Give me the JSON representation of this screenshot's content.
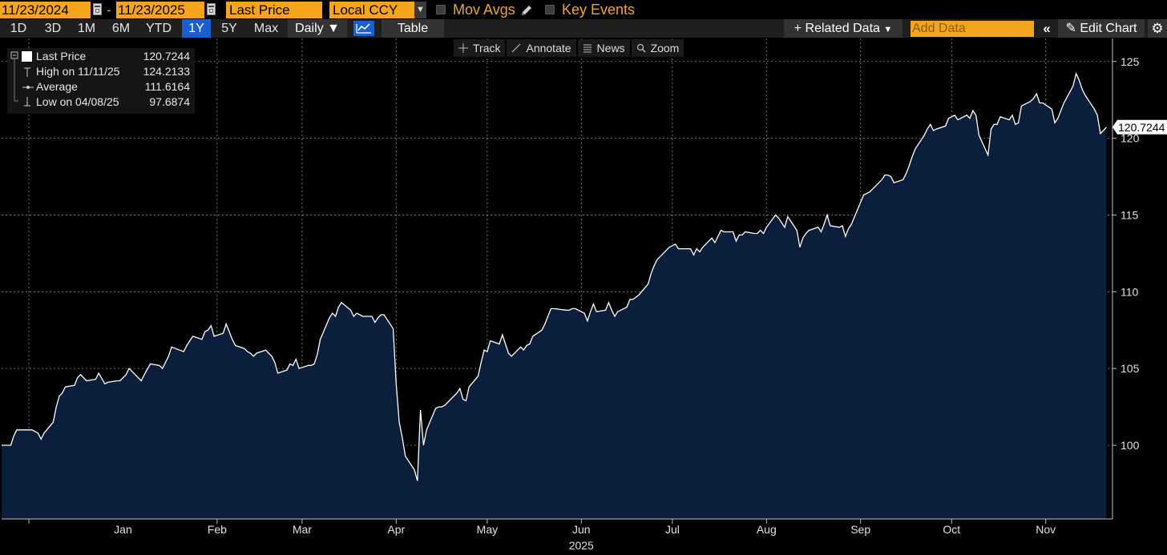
{
  "toolbar": {
    "start_date": "11/23/2024",
    "end_date": "11/23/2025",
    "separator": "-",
    "field": "Last Price",
    "currency": "Local CCY",
    "mov_avgs": "Mov Avgs",
    "key_events": "Key Events"
  },
  "periods": {
    "items": [
      "1D",
      "3D",
      "1M",
      "6M",
      "YTD",
      "1Y",
      "5Y",
      "Max"
    ],
    "active": "1Y",
    "frequency": "Daily",
    "table": "Table",
    "related_data": "Related Data",
    "add_data_placeholder": "Add Data",
    "edit_chart": "Edit Chart"
  },
  "tools": [
    "Track",
    "Annotate",
    "News",
    "Zoom"
  ],
  "legend": {
    "rows": [
      {
        "label": "Last Price",
        "value": "120.7244"
      },
      {
        "label": "High on 11/11/25",
        "value": "124.2133"
      },
      {
        "label": "Average",
        "value": "111.6164"
      },
      {
        "label": "Low on 04/08/25",
        "value": "97.6874"
      }
    ]
  },
  "colors": {
    "accent": "#f4a51c",
    "active_blue": "#1a5fd0",
    "area_fill": "#0b1f3d",
    "line": "#ffffff",
    "grid": "#8c8c8c"
  },
  "chart_data": {
    "type": "area",
    "xlabel": "2025",
    "ylabel": "",
    "ylim": [
      95.2,
      126.5
    ],
    "y_ticks": [
      100,
      105,
      110,
      115,
      120,
      125
    ],
    "x_ticks": [
      "Jan",
      "Feb",
      "Mar",
      "Apr",
      "May",
      "Jun",
      "Jul",
      "Aug",
      "Sep",
      "Oct",
      "Nov"
    ],
    "x_tick_dates": [
      "2025-01-01",
      "2025-02-01",
      "2025-03-01",
      "2025-04-01",
      "2025-05-01",
      "2025-06-01",
      "2025-07-01",
      "2025-08-01",
      "2025-09-01",
      "2025-10-01",
      "2025-11-01"
    ],
    "x_range": [
      "2024-11-22",
      "2025-11-23"
    ],
    "last_value_label": "120.7244",
    "grid": true,
    "legend_position": "top-left",
    "series": [
      {
        "name": "Last Price",
        "points": [
          [
            "2024-11-22",
            100.0
          ],
          [
            "2024-11-25",
            100.0
          ],
          [
            "2024-11-26",
            100.6
          ],
          [
            "2024-11-27",
            101.0
          ],
          [
            "2024-11-29",
            101.0
          ],
          [
            "2024-12-02",
            101.0
          ],
          [
            "2024-12-03",
            100.9
          ],
          [
            "2024-12-04",
            100.8
          ],
          [
            "2024-12-05",
            100.4
          ],
          [
            "2024-12-06",
            100.8
          ],
          [
            "2024-12-09",
            101.5
          ],
          [
            "2024-12-10",
            102.5
          ],
          [
            "2024-12-11",
            103.2
          ],
          [
            "2024-12-12",
            103.4
          ],
          [
            "2024-12-13",
            103.8
          ],
          [
            "2024-12-16",
            103.9
          ],
          [
            "2024-12-17",
            104.4
          ],
          [
            "2024-12-18",
            104.6
          ],
          [
            "2024-12-19",
            104.4
          ],
          [
            "2024-12-20",
            104.2
          ],
          [
            "2024-12-23",
            104.3
          ],
          [
            "2024-12-24",
            104.7
          ],
          [
            "2024-12-26",
            104.0
          ],
          [
            "2024-12-27",
            104.1
          ],
          [
            "2024-12-30",
            104.2
          ],
          [
            "2024-12-31",
            104.2
          ],
          [
            "2025-01-02",
            104.6
          ],
          [
            "2025-01-03",
            105.0
          ],
          [
            "2025-01-06",
            104.4
          ],
          [
            "2025-01-07",
            104.2
          ],
          [
            "2025-01-08",
            104.6
          ],
          [
            "2025-01-10",
            105.3
          ],
          [
            "2025-01-13",
            105.2
          ],
          [
            "2025-01-14",
            105.0
          ],
          [
            "2025-01-15",
            105.4
          ],
          [
            "2025-01-16",
            105.8
          ],
          [
            "2025-01-17",
            106.4
          ],
          [
            "2025-01-21",
            106.1
          ],
          [
            "2025-01-22",
            106.5
          ],
          [
            "2025-01-23",
            106.8
          ],
          [
            "2025-01-24",
            107.1
          ],
          [
            "2025-01-27",
            106.9
          ],
          [
            "2025-01-28",
            107.4
          ],
          [
            "2025-01-29",
            107.5
          ],
          [
            "2025-01-30",
            107.8
          ],
          [
            "2025-01-31",
            107.1
          ],
          [
            "2025-02-03",
            107.3
          ],
          [
            "2025-02-04",
            107.9
          ],
          [
            "2025-02-05",
            107.4
          ],
          [
            "2025-02-06",
            106.9
          ],
          [
            "2025-02-07",
            106.5
          ],
          [
            "2025-02-10",
            106.3
          ],
          [
            "2025-02-11",
            106.1
          ],
          [
            "2025-02-12",
            106.0
          ],
          [
            "2025-02-13",
            105.8
          ],
          [
            "2025-02-14",
            106.0
          ],
          [
            "2025-02-17",
            106.2
          ],
          [
            "2025-02-18",
            106.0
          ],
          [
            "2025-02-19",
            105.8
          ],
          [
            "2025-02-20",
            105.4
          ],
          [
            "2025-02-21",
            104.7
          ],
          [
            "2025-02-24",
            104.9
          ],
          [
            "2025-02-25",
            105.3
          ],
          [
            "2025-02-26",
            105.2
          ],
          [
            "2025-02-27",
            105.6
          ],
          [
            "2025-02-28",
            105.0
          ],
          [
            "2025-03-03",
            105.2
          ],
          [
            "2025-03-04",
            105.2
          ],
          [
            "2025-03-05",
            105.3
          ],
          [
            "2025-03-06",
            105.9
          ],
          [
            "2025-03-07",
            106.9
          ],
          [
            "2025-03-10",
            108.3
          ],
          [
            "2025-03-11",
            108.6
          ],
          [
            "2025-03-12",
            108.4
          ],
          [
            "2025-03-13",
            109.0
          ],
          [
            "2025-03-14",
            109.3
          ],
          [
            "2025-03-17",
            108.8
          ],
          [
            "2025-03-18",
            108.4
          ],
          [
            "2025-03-19",
            108.6
          ],
          [
            "2025-03-20",
            108.5
          ],
          [
            "2025-03-21",
            108.4
          ],
          [
            "2025-03-24",
            108.4
          ],
          [
            "2025-03-25",
            108.0
          ],
          [
            "2025-03-26",
            108.3
          ],
          [
            "2025-03-27",
            108.5
          ],
          [
            "2025-03-28",
            108.5
          ],
          [
            "2025-03-31",
            107.6
          ],
          [
            "2025-04-01",
            104.0
          ],
          [
            "2025-04-02",
            101.5
          ],
          [
            "2025-04-03",
            100.5
          ],
          [
            "2025-04-04",
            99.3
          ],
          [
            "2025-04-07",
            98.4
          ],
          [
            "2025-04-08",
            97.69
          ],
          [
            "2025-04-09",
            102.3
          ],
          [
            "2025-04-10",
            100.0
          ],
          [
            "2025-04-11",
            101.0
          ],
          [
            "2025-04-14",
            102.4
          ],
          [
            "2025-04-15",
            102.5
          ],
          [
            "2025-04-16",
            102.5
          ],
          [
            "2025-04-17",
            102.6
          ],
          [
            "2025-04-21",
            103.4
          ],
          [
            "2025-04-22",
            103.7
          ],
          [
            "2025-04-23",
            103.0
          ],
          [
            "2025-04-24",
            102.9
          ],
          [
            "2025-04-25",
            103.8
          ],
          [
            "2025-04-28",
            104.5
          ],
          [
            "2025-04-29",
            105.4
          ],
          [
            "2025-04-30",
            106.2
          ],
          [
            "2025-05-01",
            106.1
          ],
          [
            "2025-05-02",
            106.8
          ],
          [
            "2025-05-05",
            106.6
          ],
          [
            "2025-05-06",
            107.2
          ],
          [
            "2025-05-07",
            106.6
          ],
          [
            "2025-05-08",
            106.0
          ],
          [
            "2025-05-09",
            105.8
          ],
          [
            "2025-05-12",
            106.4
          ],
          [
            "2025-05-13",
            106.2
          ],
          [
            "2025-05-14",
            106.5
          ],
          [
            "2025-05-15",
            106.6
          ],
          [
            "2025-05-16",
            107.1
          ],
          [
            "2025-05-19",
            107.5
          ],
          [
            "2025-05-20",
            107.9
          ],
          [
            "2025-05-21",
            108.4
          ],
          [
            "2025-05-22",
            108.9
          ],
          [
            "2025-05-23",
            108.9
          ],
          [
            "2025-05-27",
            108.8
          ],
          [
            "2025-05-28",
            108.8
          ],
          [
            "2025-05-29",
            108.9
          ],
          [
            "2025-05-30",
            108.9
          ],
          [
            "2025-06-02",
            108.6
          ],
          [
            "2025-06-03",
            108.1
          ],
          [
            "2025-06-04",
            108.7
          ],
          [
            "2025-06-05",
            109.2
          ],
          [
            "2025-06-06",
            108.7
          ],
          [
            "2025-06-09",
            108.8
          ],
          [
            "2025-06-10",
            109.3
          ],
          [
            "2025-06-11",
            108.8
          ],
          [
            "2025-06-12",
            108.4
          ],
          [
            "2025-06-13",
            108.7
          ],
          [
            "2025-06-16",
            109.0
          ],
          [
            "2025-06-17",
            109.5
          ],
          [
            "2025-06-18",
            109.5
          ],
          [
            "2025-06-20",
            109.8
          ],
          [
            "2025-06-23",
            110.5
          ],
          [
            "2025-06-24",
            111.2
          ],
          [
            "2025-06-25",
            111.7
          ],
          [
            "2025-06-26",
            112.1
          ],
          [
            "2025-06-27",
            112.3
          ],
          [
            "2025-06-30",
            112.9
          ],
          [
            "2025-07-01",
            113.0
          ],
          [
            "2025-07-02",
            113.1
          ],
          [
            "2025-07-03",
            112.8
          ],
          [
            "2025-07-07",
            112.8
          ],
          [
            "2025-07-08",
            112.4
          ],
          [
            "2025-07-09",
            112.8
          ],
          [
            "2025-07-10",
            112.6
          ],
          [
            "2025-07-11",
            112.9
          ],
          [
            "2025-07-14",
            113.5
          ],
          [
            "2025-07-15",
            113.2
          ],
          [
            "2025-07-16",
            113.6
          ],
          [
            "2025-07-17",
            114.0
          ],
          [
            "2025-07-18",
            113.9
          ],
          [
            "2025-07-21",
            113.9
          ],
          [
            "2025-07-22",
            113.3
          ],
          [
            "2025-07-23",
            113.7
          ],
          [
            "2025-07-24",
            113.7
          ],
          [
            "2025-07-25",
            113.9
          ],
          [
            "2025-07-28",
            113.8
          ],
          [
            "2025-07-29",
            113.8
          ],
          [
            "2025-07-30",
            114.0
          ],
          [
            "2025-07-31",
            113.8
          ],
          [
            "2025-08-01",
            114.2
          ],
          [
            "2025-08-04",
            115.0
          ],
          [
            "2025-08-05",
            114.8
          ],
          [
            "2025-08-06",
            114.5
          ],
          [
            "2025-08-07",
            114.2
          ],
          [
            "2025-08-08",
            114.9
          ],
          [
            "2025-08-11",
            114.0
          ],
          [
            "2025-08-12",
            112.9
          ],
          [
            "2025-08-13",
            113.5
          ],
          [
            "2025-08-14",
            113.8
          ],
          [
            "2025-08-15",
            114.0
          ],
          [
            "2025-08-18",
            114.2
          ],
          [
            "2025-08-19",
            113.9
          ],
          [
            "2025-08-20",
            114.4
          ],
          [
            "2025-08-21",
            115.0
          ],
          [
            "2025-08-22",
            114.3
          ],
          [
            "2025-08-25",
            114.2
          ],
          [
            "2025-08-26",
            114.3
          ],
          [
            "2025-08-27",
            113.6
          ],
          [
            "2025-08-28",
            114.1
          ],
          [
            "2025-08-29",
            114.4
          ],
          [
            "2025-09-02",
            116.3
          ],
          [
            "2025-09-03",
            116.4
          ],
          [
            "2025-09-04",
            116.5
          ],
          [
            "2025-09-05",
            116.7
          ],
          [
            "2025-09-08",
            117.3
          ],
          [
            "2025-09-09",
            117.6
          ],
          [
            "2025-09-10",
            117.6
          ],
          [
            "2025-09-11",
            117.5
          ],
          [
            "2025-09-12",
            117.1
          ],
          [
            "2025-09-15",
            117.3
          ],
          [
            "2025-09-16",
            117.7
          ],
          [
            "2025-09-17",
            118.2
          ],
          [
            "2025-09-18",
            118.8
          ],
          [
            "2025-09-19",
            119.3
          ],
          [
            "2025-09-22",
            120.2
          ],
          [
            "2025-09-23",
            120.6
          ],
          [
            "2025-09-24",
            120.9
          ],
          [
            "2025-09-25",
            120.5
          ],
          [
            "2025-09-26",
            120.6
          ],
          [
            "2025-09-29",
            120.8
          ],
          [
            "2025-09-30",
            121.3
          ],
          [
            "2025-10-01",
            121.4
          ],
          [
            "2025-10-02",
            121.5
          ],
          [
            "2025-10-03",
            121.2
          ],
          [
            "2025-10-06",
            121.5
          ],
          [
            "2025-10-07",
            121.3
          ],
          [
            "2025-10-08",
            121.8
          ],
          [
            "2025-10-09",
            121.5
          ],
          [
            "2025-10-10",
            120.2
          ],
          [
            "2025-10-13",
            118.9
          ],
          [
            "2025-10-14",
            120.6
          ],
          [
            "2025-10-15",
            120.9
          ],
          [
            "2025-10-16",
            120.9
          ],
          [
            "2025-10-17",
            121.4
          ],
          [
            "2025-10-20",
            121.2
          ],
          [
            "2025-10-21",
            121.5
          ],
          [
            "2025-10-22",
            120.9
          ],
          [
            "2025-10-23",
            121.0
          ],
          [
            "2025-10-24",
            122.1
          ],
          [
            "2025-10-27",
            122.4
          ],
          [
            "2025-10-28",
            122.6
          ],
          [
            "2025-10-29",
            122.9
          ],
          [
            "2025-10-30",
            122.3
          ],
          [
            "2025-10-31",
            122.3
          ],
          [
            "2025-11-03",
            121.9
          ],
          [
            "2025-11-04",
            121.0
          ],
          [
            "2025-11-05",
            121.3
          ],
          [
            "2025-11-06",
            121.8
          ],
          [
            "2025-11-07",
            122.3
          ],
          [
            "2025-11-10",
            123.4
          ],
          [
            "2025-11-11",
            124.21
          ],
          [
            "2025-11-12",
            123.8
          ],
          [
            "2025-11-13",
            123.2
          ],
          [
            "2025-11-14",
            122.8
          ],
          [
            "2025-11-17",
            121.9
          ],
          [
            "2025-11-18",
            121.5
          ],
          [
            "2025-11-19",
            120.3
          ],
          [
            "2025-11-20",
            120.5
          ],
          [
            "2025-11-21",
            120.72
          ]
        ]
      }
    ]
  }
}
